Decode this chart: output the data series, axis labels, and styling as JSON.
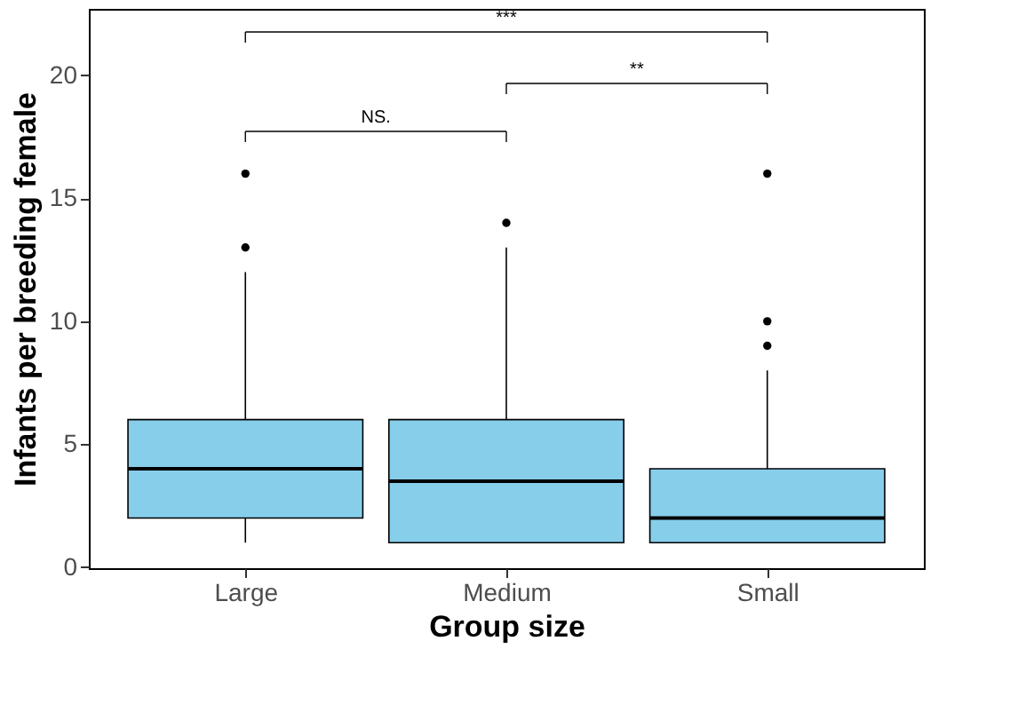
{
  "chart_data": {
    "type": "box",
    "xlabel": "Group size",
    "ylabel": "Infants per breeding female",
    "categories": [
      "Large",
      "Medium",
      "Small"
    ],
    "boxes": [
      {
        "low": 1,
        "q1": 2,
        "median": 4,
        "q3": 6,
        "high": 12,
        "outliers": [
          13,
          16
        ]
      },
      {
        "low": 1,
        "q1": 1,
        "median": 3.5,
        "q3": 6,
        "high": 13,
        "outliers": [
          14
        ]
      },
      {
        "low": 1,
        "q1": 1,
        "median": 2,
        "q3": 4,
        "high": 8,
        "outliers": [
          9,
          10,
          16
        ]
      }
    ],
    "color": "#87ceeb",
    "ylim": [
      -0.04,
      22.7
    ],
    "yticks": [
      0,
      5,
      10,
      15,
      20
    ],
    "grid": false,
    "annotations": [
      "NS.",
      "**",
      "***"
    ]
  }
}
